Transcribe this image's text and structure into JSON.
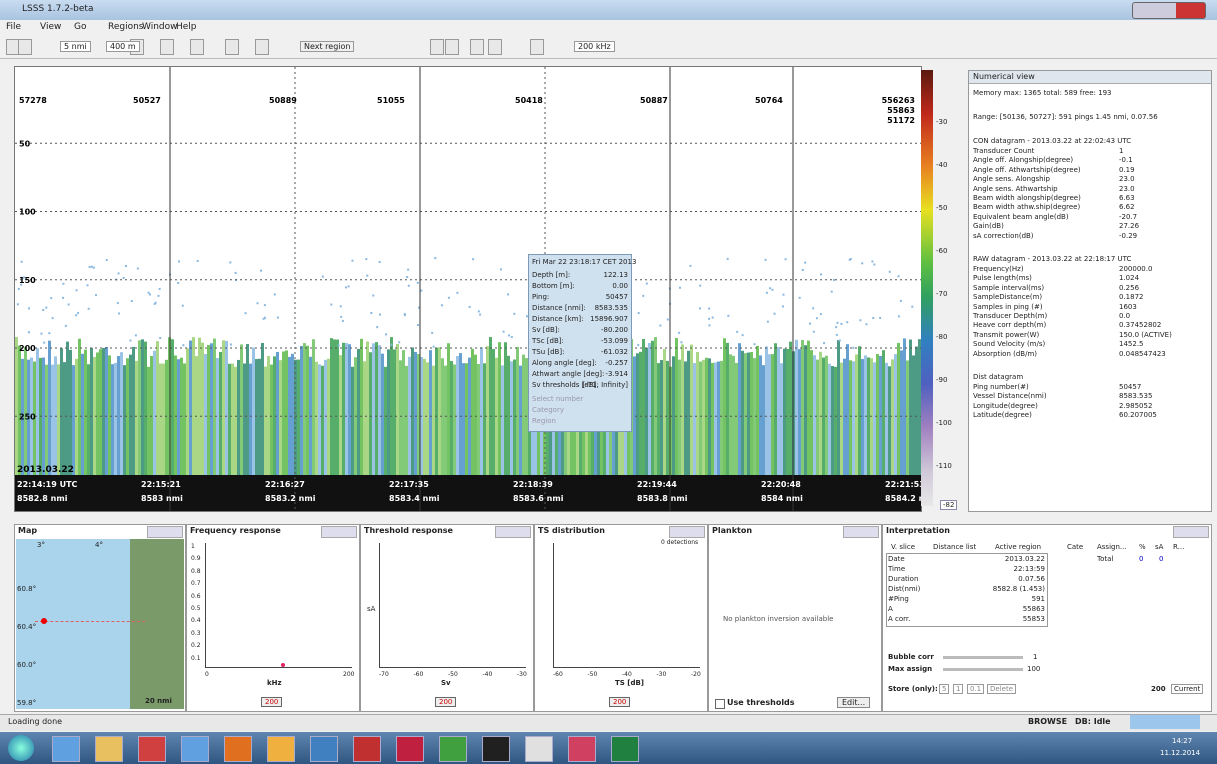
{
  "window": {
    "title": "LSSS 1.7.2-beta"
  },
  "menu": [
    "File",
    "View",
    "Go",
    "Regions",
    "Window",
    "Help"
  ],
  "toolbar": {
    "distance": "5 nmi",
    "range": "400 m",
    "next_region": "Next region",
    "frequency": "200 kHz"
  },
  "echogram": {
    "ping_labels": [
      "57278",
      "50527",
      "50889",
      "51055",
      "50418",
      "50887",
      "50764"
    ],
    "ping_right": [
      "556263",
      "55863",
      "51172"
    ],
    "depth_ticks": [
      50,
      100,
      150,
      200,
      250
    ],
    "date": "2013.03.22",
    "times": [
      "22:14:19 UTC",
      "22:15:21",
      "22:16:27",
      "22:17:35",
      "22:18:39",
      "22:19:44",
      "22:20:48",
      "22:21:53"
    ],
    "distances": [
      "8582.8 nmi",
      "8583 nmi",
      "8583.2 nmi",
      "8583.4 nmi",
      "8583.6 nmi",
      "8583.8 nmi",
      "8584 nmi",
      "8584.2 nmi"
    ],
    "tooltip": {
      "title": "Fri Mar 22 23:18:17 CET 2013",
      "rows": [
        [
          "Depth [m]:",
          "122.13"
        ],
        [
          "Bottom [m]:",
          "0.00"
        ],
        [
          "Ping:",
          "50457"
        ],
        [
          "Distance [nmi]:",
          "8583.535"
        ],
        [
          "Distance [km]:",
          "15896.907"
        ],
        [
          "Sv [dB]:",
          "-80.200"
        ],
        [
          "TSc [dB]:",
          "-53.099"
        ],
        [
          "TSu [dB]:",
          "-61.032"
        ],
        [
          "Along angle [deg]:",
          "-0.257"
        ],
        [
          "Athwart angle [deg]:",
          "-3.914"
        ],
        [
          "Sv thresholds [dB]:",
          "[-71, Infinity]"
        ]
      ],
      "disabled": [
        "Select number",
        "Category",
        "Region"
      ]
    }
  },
  "colorbar": {
    "labels": [
      "-30",
      "-40",
      "-50",
      "-60",
      "-70",
      "-80",
      "-90",
      "-100",
      "-110"
    ],
    "current": "-82"
  },
  "numerical_view": {
    "title": "Numerical view",
    "memory": "Memory max: 1365  total: 589  free: 193",
    "range": "Range: [50136, 50727]: 591 pings  1.45 nmi, 0.07.56",
    "sections": [
      {
        "title": "CON datagram - 2013.03.22 at 22:02:43 UTC",
        "rows": [
          [
            "Transducer Count",
            "1"
          ],
          [
            "Angle off. Alongship(degree)",
            "-0.1"
          ],
          [
            "Angle off. Athwartship(degree)",
            "0.19"
          ],
          [
            "Angle sens. Alongship",
            "23.0"
          ],
          [
            "Angle sens. Athwartship",
            "23.0"
          ],
          [
            "Beam width alongship(degree)",
            "6.63"
          ],
          [
            "Beam width athw.ship(degree)",
            "6.62"
          ],
          [
            "Equivalent beam angle(dB)",
            "-20.7"
          ],
          [
            "Gain(dB)",
            "27.26"
          ],
          [
            "sA correction(dB)",
            "-0.29"
          ]
        ]
      },
      {
        "title": "RAW datagram - 2013.03.22 at 22:18:17 UTC",
        "rows": [
          [
            "Frequency(Hz)",
            "200000.0"
          ],
          [
            "Pulse length(ms)",
            "1.024"
          ],
          [
            "Sample interval(ms)",
            "0.256"
          ],
          [
            "SampleDistance(m)",
            "0.1872"
          ],
          [
            "Samples in ping (#)",
            "1603"
          ],
          [
            "Transducer Depth(m)",
            "0.0"
          ],
          [
            "Heave corr depth(m)",
            "0.37452802"
          ],
          [
            "Transmit power(W)",
            "150.0 (ACTIVE)"
          ],
          [
            "Sound Velocity (m/s)",
            "1452.5"
          ],
          [
            "Absorption (dB/m)",
            "0.048547423"
          ]
        ]
      },
      {
        "title": "Dist datagram",
        "rows": [
          [
            "Ping number(#)",
            "50457"
          ],
          [
            "Vessel Distance(nmi)",
            "8583.535"
          ],
          [
            "Longitude(degree)",
            "2.985052"
          ],
          [
            "Latitude(degree)",
            "60.207005"
          ]
        ]
      }
    ]
  },
  "panels": {
    "map": {
      "title": "Map",
      "lon": [
        "3°",
        "4°"
      ],
      "lat": [
        "60.8°",
        "60.4°",
        "60.0°",
        "59.8°"
      ],
      "scale": "20 nmi"
    },
    "frequency": {
      "title": "Frequency response",
      "yticks": [
        "1",
        "0.9",
        "0.8",
        "0.7",
        "0.6",
        "0.5",
        "0.4",
        "0.3",
        "0.2",
        "0.1"
      ],
      "xticks": [
        "0",
        "200"
      ],
      "xlabel": "kHz",
      "button": "200"
    },
    "threshold": {
      "title": "Threshold response",
      "xticks": [
        "-70",
        "-60",
        "-50",
        "-40",
        "-30"
      ],
      "xlabel": "Sv",
      "ylabel": "sA",
      "button": "200"
    },
    "ts": {
      "title": "TS distribution",
      "detections": "0 detections",
      "xticks": [
        "-60",
        "-50",
        "-40",
        "-30",
        "-20"
      ],
      "xlabel": "TS [dB]",
      "button": "200"
    },
    "plankton": {
      "title": "Plankton",
      "message": "No plankton inversion available",
      "checkbox": "Use thresholds",
      "button": "Edit..."
    },
    "interpretation": {
      "title": "Interpretation",
      "headers": [
        "V. slice",
        "Distance list",
        "Active region"
      ],
      "rows": [
        [
          "Date",
          "2013.03.22"
        ],
        [
          "Time",
          "22:13:59"
        ],
        [
          "Duration",
          "0.07.56"
        ],
        [
          "Dist(nmi)",
          "8582.8 (1.453)"
        ],
        [
          "#Ping",
          "591"
        ],
        [
          "A",
          "55863"
        ],
        [
          "A corr.",
          "55853"
        ]
      ],
      "cat_headers": [
        "Cate",
        "Assign...",
        "%",
        "sA",
        "R..."
      ],
      "cat_row": [
        "Total",
        "0",
        "0"
      ],
      "bubble": "Bubble corr",
      "bubble_value": "1",
      "max_assign": "Max assign",
      "max_value": "100",
      "store": "Store (only):",
      "store_values": [
        "5",
        "1",
        "0.1"
      ],
      "delete": "Delete",
      "freq": "200",
      "current": "Current"
    }
  },
  "status": {
    "message": "Loading done",
    "mode": "BROWSE",
    "db": "DB: Idle"
  },
  "taskbar": {
    "time": "14:27",
    "date": "11.12.2014"
  }
}
